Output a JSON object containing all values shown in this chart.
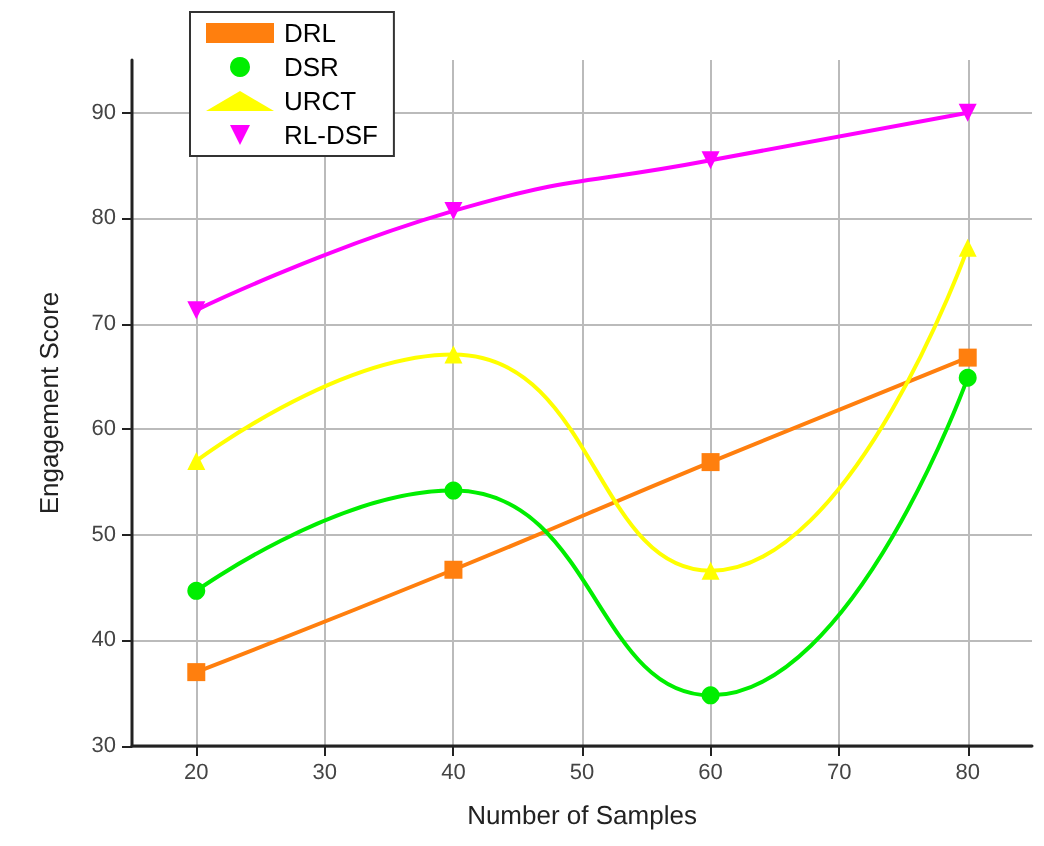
{
  "chart_data": {
    "type": "line",
    "xlabel": "Number of Samples",
    "ylabel": "Engagement Score",
    "x": [
      20,
      40,
      60,
      80
    ],
    "series": [
      {
        "name": "DRL",
        "color": "#ff7f0e",
        "marker": "square",
        "values": [
          37,
          46.7,
          56.9,
          66.8
        ]
      },
      {
        "name": "DSR",
        "color": "#00ee00",
        "marker": "circle",
        "values": [
          44.7,
          54.2,
          34.8,
          64.9
        ]
      },
      {
        "name": "URCT",
        "color": "#ffff00",
        "marker": "triangle",
        "values": [
          57,
          67.1,
          46.6,
          77.2
        ]
      },
      {
        "name": "RL-DSF",
        "color": "#ff00ff",
        "marker": "triangle-down",
        "values": [
          71.3,
          80.7,
          85.5,
          90
        ]
      }
    ],
    "xlim": [
      15,
      85
    ],
    "xticks": [
      20,
      30,
      40,
      50,
      60,
      70,
      80
    ],
    "ylim": [
      30,
      95
    ],
    "yticks": [
      30,
      40,
      50,
      60,
      70,
      80,
      90
    ],
    "grid": true,
    "legend": "top left",
    "line_style": "solid"
  }
}
